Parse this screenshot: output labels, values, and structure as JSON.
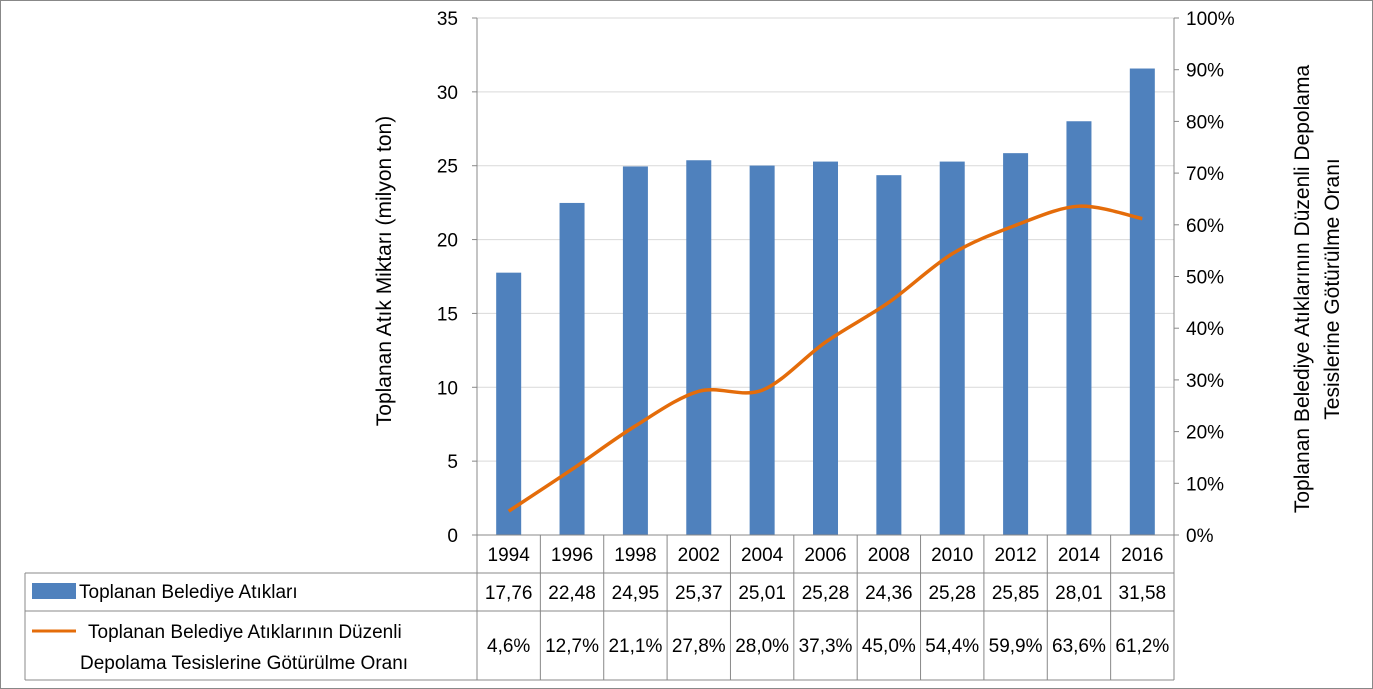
{
  "chart_data": {
    "type": "bar+line",
    "categories": [
      "1994",
      "1996",
      "1998",
      "2002",
      "2004",
      "2006",
      "2008",
      "2010",
      "2012",
      "2014",
      "2016"
    ],
    "series": [
      {
        "name": "Toplanan Belediye Atıkları",
        "type": "bar",
        "axis": "left",
        "values": [
          17.76,
          22.48,
          24.95,
          25.37,
          25.01,
          25.28,
          24.36,
          25.28,
          25.85,
          28.01,
          31.58
        ],
        "labels": [
          "17,76",
          "22,48",
          "24,95",
          "25,37",
          "25,01",
          "25,28",
          "24,36",
          "25,28",
          "25,85",
          "28,01",
          "31,58"
        ],
        "color": "#4F81BD"
      },
      {
        "name_lines": [
          "Toplanan Belediye Atıklarının Düzenli",
          "Depolama Tesislerine Götürülme Oranı"
        ],
        "type": "line",
        "axis": "right",
        "values": [
          4.6,
          12.7,
          21.1,
          27.8,
          28.0,
          37.3,
          45.0,
          54.4,
          59.9,
          63.6,
          61.2
        ],
        "labels": [
          "4,6%",
          "12,7%",
          "21,1%",
          "27,8%",
          "28,0%",
          "37,3%",
          "45,0%",
          "54,4%",
          "59,9%",
          "63,6%",
          "61,2%"
        ],
        "color": "#E46C0A"
      }
    ],
    "y_left": {
      "label": "Toplanan Atık Miktarı (milyon ton)",
      "range": [
        0,
        35
      ],
      "ticks": [
        "0",
        "5",
        "10",
        "15",
        "20",
        "25",
        "30",
        "35"
      ]
    },
    "y_right": {
      "label_lines": [
        "Toplanan Belediye Atıklarının Düzenli Depolama",
        "Tesislerine  Götürülme Oranı"
      ],
      "range": [
        0,
        100
      ],
      "ticks": [
        "0%",
        "10%",
        "20%",
        "30%",
        "40%",
        "50%",
        "60%",
        "70%",
        "80%",
        "90%",
        "100%"
      ]
    },
    "grid": true,
    "legend": "data-table"
  }
}
